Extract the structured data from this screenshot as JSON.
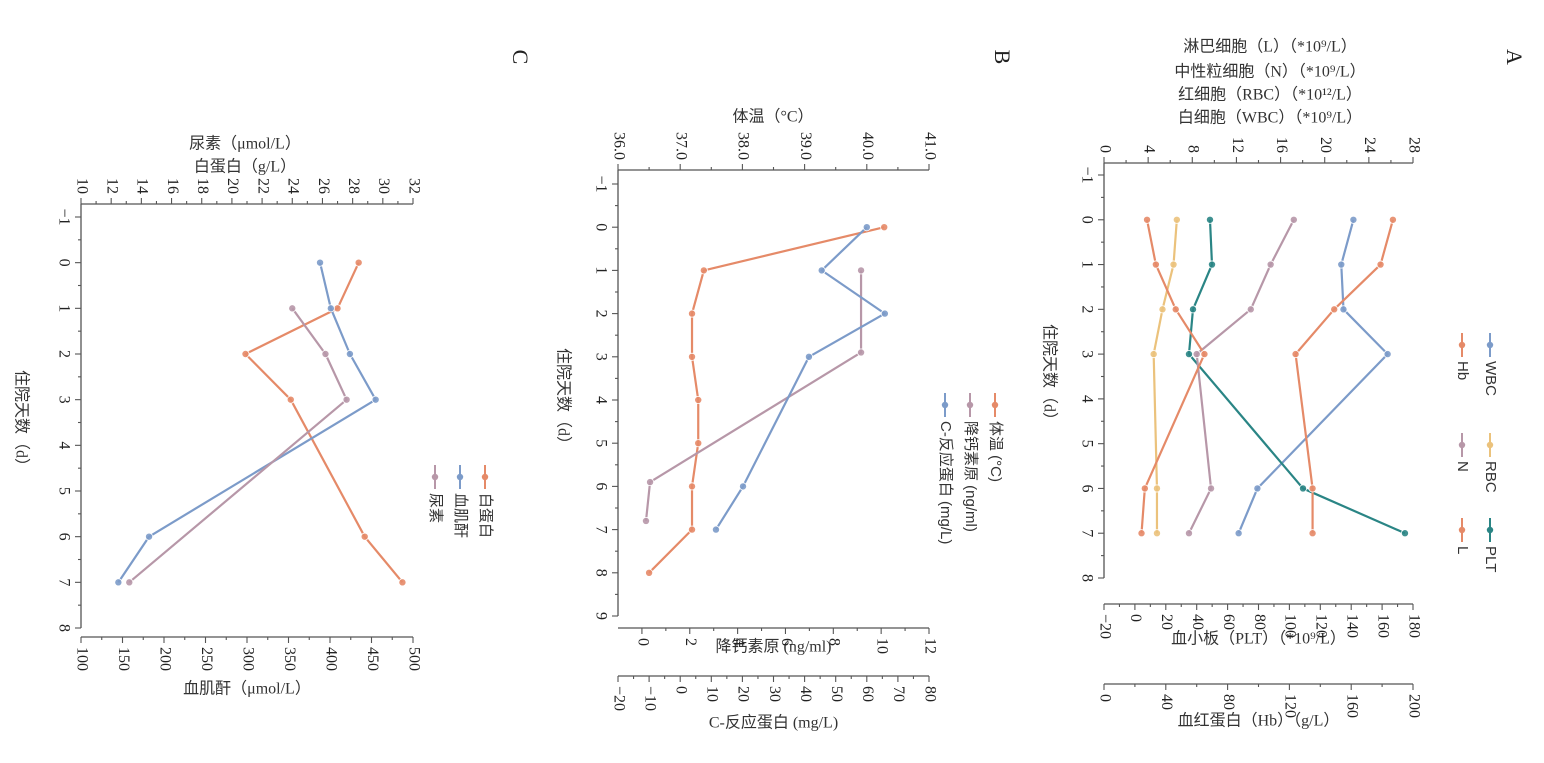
{
  "figure": {
    "rotation": "90deg-clockwise",
    "panel_labels": [
      "A",
      "B",
      "C"
    ]
  },
  "colors": {
    "orange": "#E58A68",
    "blue": "#7C9BC9",
    "mauve": "#B797A8",
    "yellow": "#EBC27C",
    "teal": "#2A8585"
  },
  "chart_data": [
    {
      "panel": "A",
      "type": "line",
      "xlabel": "住院天数（d）",
      "xlim": [
        -1,
        8
      ],
      "x_ticks": [
        -1,
        0,
        1,
        2,
        3,
        4,
        5,
        6,
        7,
        8
      ],
      "axes": [
        {
          "id": "left",
          "labels": [
            "淋巴细胞（L）（*10⁹/L）",
            "中性粒细胞（N）（*10⁹/L）",
            "红细胞（RBC）（*10¹²/L）",
            "白细胞（WBC）（*10⁹/L）"
          ],
          "ylim": [
            0,
            28
          ],
          "ticks": [
            0,
            4,
            8,
            12,
            16,
            20,
            24,
            28
          ]
        },
        {
          "id": "plt",
          "label": "血小板（PLT）（*10⁹/L）",
          "ylim": [
            -20,
            180
          ],
          "ticks": [
            -20,
            0,
            20,
            40,
            60,
            80,
            100,
            120,
            140,
            160,
            180
          ]
        },
        {
          "id": "hb",
          "label": "血红蛋白（Hb）（g/L）",
          "ylim": [
            0,
            200
          ],
          "ticks": [
            0,
            40,
            80,
            120,
            160,
            200
          ]
        }
      ],
      "legend": {
        "placement": "right",
        "entries": [
          "WBC",
          "RBC",
          "PLT",
          "Hb",
          "N",
          "L"
        ]
      },
      "series": [
        {
          "name": "WBC",
          "axis": "left",
          "color": "blue",
          "x": [
            0,
            1,
            2,
            3,
            6,
            7
          ],
          "values": [
            22.6,
            21.5,
            21.7,
            25.7,
            13.9,
            12.2
          ]
        },
        {
          "name": "RBC",
          "axis": "left",
          "color": "yellow",
          "x": [
            0,
            1,
            2,
            3,
            6,
            7
          ],
          "values": [
            6.6,
            6.3,
            5.3,
            4.5,
            4.8,
            4.8
          ]
        },
        {
          "name": "PLT",
          "axis": "plt",
          "color": "teal",
          "x": [
            0,
            1,
            2,
            3,
            6,
            7
          ],
          "values": [
            48.6,
            49.9,
            37.6,
            35.0,
            108.8,
            174.8
          ]
        },
        {
          "name": "Hb",
          "axis": "hb",
          "color": "orange",
          "x": [
            0,
            1,
            2,
            3,
            6,
            7
          ],
          "values": [
            187,
            179,
            149,
            124,
            135,
            135
          ]
        },
        {
          "name": "N",
          "axis": "left",
          "color": "mauve",
          "x": [
            0,
            1,
            2,
            3,
            6,
            7
          ],
          "values": [
            17.2,
            15.1,
            13.3,
            8.4,
            9.7,
            7.7
          ]
        },
        {
          "name": "L",
          "axis": "left",
          "color": "orange",
          "x": [
            0,
            1,
            2,
            3,
            6,
            7
          ],
          "values": [
            3.9,
            4.7,
            6.5,
            9.1,
            3.7,
            3.4
          ]
        }
      ]
    },
    {
      "panel": "B",
      "type": "line",
      "xlabel": "住院天数（d）",
      "xlim": [
        -1,
        9
      ],
      "x_ticks": [
        -1,
        0,
        1,
        2,
        3,
        4,
        5,
        6,
        7,
        8,
        9
      ],
      "axes": [
        {
          "id": "temp",
          "label": "体温（°C）",
          "ylim": [
            36.0,
            41.0
          ],
          "ticks": [
            "36.0",
            "37.0",
            "38.0",
            "39.0",
            "40.0",
            "41.0"
          ]
        },
        {
          "id": "pct",
          "label": "降钙素原 (ng/ml)",
          "ylim": [
            -1,
            12
          ],
          "ticks": [
            0,
            2,
            4,
            6,
            8,
            10,
            12
          ]
        },
        {
          "id": "crp",
          "label": "C-反应蛋白 (mg/L)",
          "ylim": [
            -20,
            80
          ],
          "ticks": [
            -20,
            -10,
            0,
            10,
            20,
            30,
            40,
            50,
            60,
            70,
            80
          ]
        }
      ],
      "legend": {
        "placement": "right",
        "entries": [
          "体温 (°C)",
          "降钙素原 (ng/ml)",
          "C-反应蛋白 (mg/L)"
        ]
      },
      "series": [
        {
          "name": "体温 (°C)",
          "axis": "temp",
          "color": "orange",
          "x": [
            0,
            1,
            2,
            3,
            4,
            5,
            6,
            7,
            8
          ],
          "values": [
            40.28,
            37.38,
            37.19,
            37.19,
            37.29,
            37.29,
            37.19,
            37.19,
            36.5
          ]
        },
        {
          "name": "降钙素原 (ng/ml)",
          "axis": "pct",
          "color": "mauve",
          "x": [
            1,
            2.9,
            5.9,
            6.8
          ],
          "values": [
            9.16,
            9.16,
            0.34,
            0.17
          ]
        },
        {
          "name": "C-反应蛋白 (mg/L)",
          "axis": "crp",
          "color": "blue",
          "x": [
            0,
            1,
            2,
            3,
            6,
            7
          ],
          "values": [
            60.0,
            45.5,
            65.8,
            41.4,
            20.2,
            11.5
          ]
        }
      ]
    },
    {
      "panel": "C",
      "type": "line",
      "xlabel": "住院天数（d）",
      "xlim": [
        -1,
        8
      ],
      "x_ticks": [
        -1,
        0,
        1,
        2,
        3,
        4,
        5,
        6,
        7,
        8
      ],
      "axes": [
        {
          "id": "top",
          "labels": [
            "尿素（μmol/L）",
            "白蛋白（g/L）"
          ],
          "ylim": [
            10,
            32
          ],
          "ticks": [
            10,
            12,
            14,
            16,
            18,
            20,
            22,
            24,
            26,
            28,
            30,
            32
          ]
        },
        {
          "id": "cr",
          "label": "血肌酐（μmol/L）",
          "ylim": [
            100,
            500
          ],
          "ticks": [
            100,
            150,
            200,
            250,
            300,
            350,
            400,
            450,
            500
          ]
        }
      ],
      "legend": {
        "placement": "right",
        "entries": [
          "白蛋白",
          "血肌酐",
          "尿素"
        ]
      },
      "series": [
        {
          "name": "白蛋白",
          "axis": "top",
          "color": "orange",
          "x": [
            0,
            1,
            2,
            3,
            6,
            7
          ],
          "values": [
            28.4,
            27.0,
            20.9,
            23.9,
            28.8,
            31.3
          ]
        },
        {
          "name": "血肌酐",
          "axis": "cr",
          "color": "blue",
          "x": [
            0,
            1,
            2,
            3,
            6,
            7
          ],
          "values": [
            388,
            401,
            424,
            455,
            182,
            145
          ]
        },
        {
          "name": "尿素",
          "axis": "top",
          "color": "mauve",
          "x": [
            1,
            2,
            3,
            7
          ],
          "values": [
            24.0,
            26.2,
            27.6,
            13.2
          ]
        }
      ]
    }
  ]
}
